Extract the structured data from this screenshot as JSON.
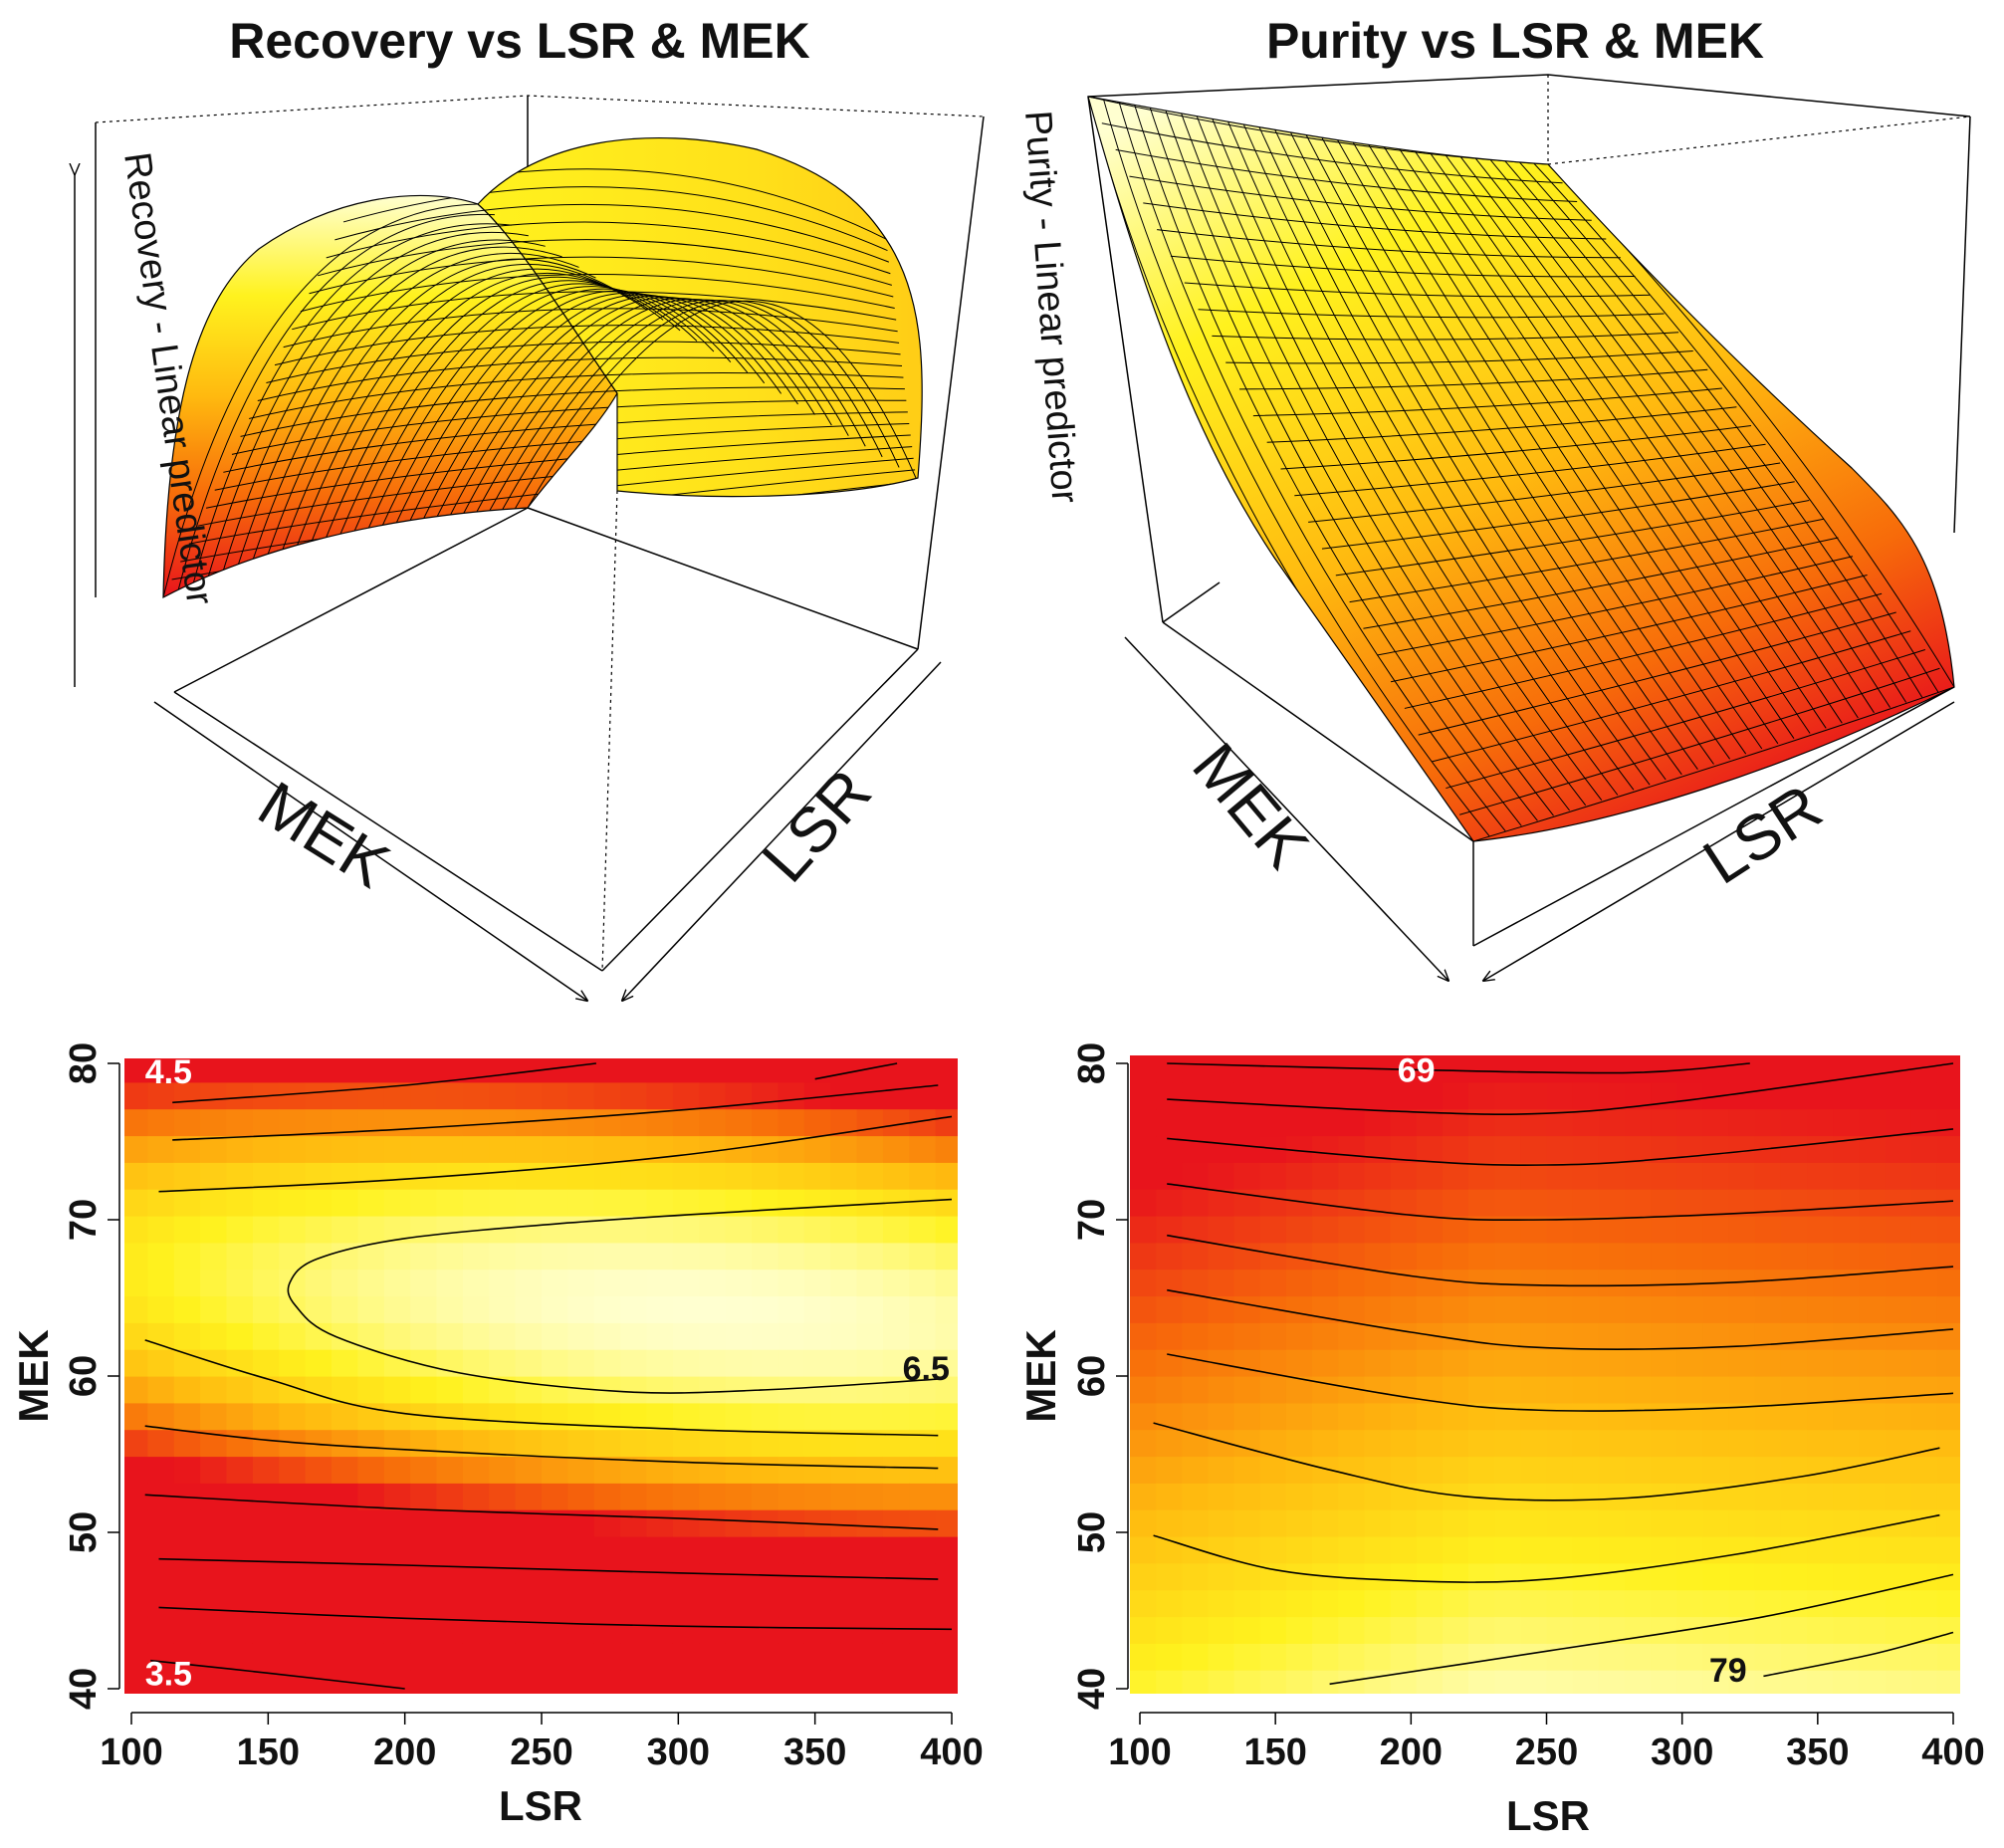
{
  "chart_data": [
    {
      "type": "surface3d",
      "title": "Recovery vs LSR & MEK",
      "xlabel": "MEK",
      "ylabel": "LSR",
      "zlabel": "Recovery - Linear predictor",
      "shape": "dome",
      "colormap": [
        "#e8141c",
        "#f76b0a",
        "#ffb90f",
        "#fff21e",
        "#ffffd0"
      ]
    },
    {
      "type": "surface3d",
      "title": "Purity vs LSR & MEK",
      "xlabel": "MEK",
      "ylabel": "LSR",
      "zlabel": "Purity - Linear predictor",
      "shape": "sloped",
      "colormap": [
        "#e8141c",
        "#f76b0a",
        "#ffb90f",
        "#fff21e",
        "#ffffd0"
      ]
    },
    {
      "type": "heatmap",
      "subtype": "contour",
      "title": "",
      "xlabel": "LSR",
      "ylabel": "MEK",
      "xlim": [
        100,
        400
      ],
      "ylim": [
        40,
        80
      ],
      "xticks": [
        100,
        150,
        200,
        250,
        300,
        350,
        400
      ],
      "yticks": [
        40,
        50,
        60,
        70,
        80
      ],
      "contour_labels": [
        {
          "text": "4.5",
          "x": 105,
          "y": 79.5
        },
        {
          "text": "6.5",
          "x": 382,
          "y": 60.5
        },
        {
          "text": "3.5",
          "x": 105,
          "y": 41
        }
      ],
      "contours": [
        {
          "points": [
            [
              107,
              41.8
            ],
            [
              150,
              41.0
            ],
            [
              200,
              40.0
            ]
          ]
        },
        {
          "points": [
            [
              110,
              45.2
            ],
            [
              200,
              44.5
            ],
            [
              300,
              44.0
            ],
            [
              400,
              43.8
            ]
          ]
        },
        {
          "points": [
            [
              110,
              48.3
            ],
            [
              200,
              47.9
            ],
            [
              300,
              47.4
            ],
            [
              395,
              47.0
            ]
          ]
        },
        {
          "points": [
            [
              105,
              52.4
            ],
            [
              200,
              51.5
            ],
            [
              300,
              50.9
            ],
            [
              395,
              50.2
            ]
          ]
        },
        {
          "points": [
            [
              105,
              56.8
            ],
            [
              150,
              55.9
            ],
            [
              200,
              55.3
            ],
            [
              300,
              54.5
            ],
            [
              395,
              54.1
            ]
          ]
        },
        {
          "points": [
            [
              105,
              62.3
            ],
            [
              150,
              59.8
            ],
            [
              200,
              57.6
            ],
            [
              300,
              56.6
            ],
            [
              395,
              56.2
            ]
          ]
        },
        {
          "points": [
            [
              395,
              59.8
            ],
            [
              330,
              59.1
            ],
            [
              280,
              59.0
            ],
            [
              220,
              60.2
            ],
            [
              175,
              62.5
            ],
            [
              160,
              64.5
            ],
            [
              158,
              66.0
            ],
            [
              168,
              67.5
            ],
            [
              200,
              68.8
            ],
            [
              260,
              69.8
            ],
            [
              330,
              70.6
            ],
            [
              400,
              71.3
            ]
          ]
        },
        {
          "points": [
            [
              110,
              71.8
            ],
            [
              200,
              72.6
            ],
            [
              300,
              74.1
            ],
            [
              400,
              76.6
            ]
          ]
        },
        {
          "points": [
            [
              115,
              75.1
            ],
            [
              200,
              75.8
            ],
            [
              300,
              77.0
            ],
            [
              395,
              78.6
            ]
          ]
        },
        {
          "points": [
            [
              115,
              77.5
            ],
            [
              200,
              78.6
            ],
            [
              270,
              80.0
            ]
          ]
        },
        {
          "points": [
            [
              350,
              79.0
            ],
            [
              380,
              80.0
            ]
          ]
        }
      ],
      "colormap": [
        "#e8141c",
        "#f76b0a",
        "#ffb90f",
        "#fff21e",
        "#ffffd0"
      ]
    },
    {
      "type": "heatmap",
      "subtype": "contour",
      "title": "",
      "xlabel": "LSR",
      "ylabel": "MEK",
      "xlim": [
        100,
        400
      ],
      "ylim": [
        40,
        80
      ],
      "xticks": [
        100,
        150,
        200,
        250,
        300,
        350,
        400
      ],
      "yticks": [
        40,
        50,
        60,
        70,
        80
      ],
      "contour_labels": [
        {
          "text": "69",
          "x": 195,
          "y": 79.6
        },
        {
          "text": "79",
          "x": 310,
          "y": 41.2
        }
      ],
      "contours": [
        {
          "points": [
            [
              110,
              80.0
            ],
            [
              200,
              79.6
            ],
            [
              280,
              79.4
            ],
            [
              325,
              80.0
            ]
          ]
        },
        {
          "points": [
            [
              110,
              77.7
            ],
            [
              200,
              76.9
            ],
            [
              250,
              76.8
            ],
            [
              300,
              77.6
            ],
            [
              400,
              80.0
            ]
          ]
        },
        {
          "points": [
            [
              110,
              75.2
            ],
            [
              200,
              73.8
            ],
            [
              250,
              73.5
            ],
            [
              300,
              74.0
            ],
            [
              400,
              75.8
            ]
          ]
        },
        {
          "points": [
            [
              110,
              72.3
            ],
            [
              200,
              70.3
            ],
            [
              250,
              70.0
            ],
            [
              320,
              70.4
            ],
            [
              400,
              71.2
            ]
          ]
        },
        {
          "points": [
            [
              110,
              69.0
            ],
            [
              200,
              66.4
            ],
            [
              250,
              65.8
            ],
            [
              320,
              66.0
            ],
            [
              400,
              67.0
            ]
          ]
        },
        {
          "points": [
            [
              110,
              65.5
            ],
            [
              200,
              62.8
            ],
            [
              250,
              61.8
            ],
            [
              320,
              61.9
            ],
            [
              400,
              63.0
            ]
          ]
        },
        {
          "points": [
            [
              110,
              61.4
            ],
            [
              200,
              58.6
            ],
            [
              250,
              57.8
            ],
            [
              320,
              58.0
            ],
            [
              400,
              58.9
            ]
          ]
        },
        {
          "points": [
            [
              105,
              57.0
            ],
            [
              170,
              54.0
            ],
            [
              220,
              52.3
            ],
            [
              280,
              52.2
            ],
            [
              345,
              53.6
            ],
            [
              395,
              55.4
            ]
          ]
        },
        {
          "points": [
            [
              105,
              49.8
            ],
            [
              150,
              47.6
            ],
            [
              200,
              46.9
            ],
            [
              250,
              47.0
            ],
            [
              320,
              48.6
            ],
            [
              395,
              51.1
            ]
          ]
        },
        {
          "points": [
            [
              170,
              40.3
            ],
            [
              250,
              42.4
            ],
            [
              330,
              44.6
            ],
            [
              400,
              47.3
            ]
          ]
        },
        {
          "points": [
            [
              330,
              40.8
            ],
            [
              370,
              42.2
            ],
            [
              400,
              43.6
            ]
          ]
        }
      ],
      "colormap": [
        "#e8141c",
        "#f76b0a",
        "#ffb90f",
        "#fff21e",
        "#ffffd0"
      ]
    }
  ]
}
